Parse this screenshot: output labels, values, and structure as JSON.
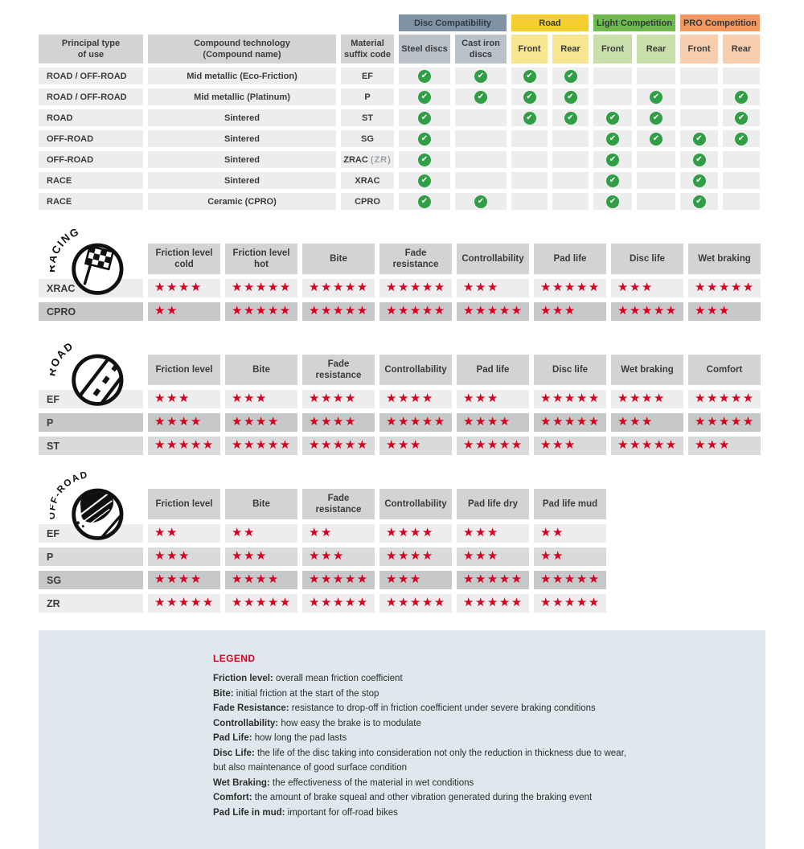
{
  "colors": {
    "star_red": "#d6001f",
    "check_green": "#2f9e44",
    "disc_compat_slate": "#8093a4",
    "disc_compat_slate_light": "#b9c1c9",
    "road_yellow": "#f5ce2f",
    "road_yellow_light": "#f8e590",
    "light_comp_green": "#70b94f",
    "light_comp_green_light": "#c8dfa9",
    "pro_comp_orange": "#f2975f",
    "pro_comp_orange_light": "#f8cfae",
    "header_gray": "#d2d4d4",
    "row_light": "#ededee",
    "row_medium": "#d9dadb",
    "row_dark": "#c7c8c9",
    "legend_bg": "#dee8ed"
  },
  "icons": {
    "star_glyph": "★",
    "check_glyph": "✔",
    "section_icons": [
      "racing-flag-icon",
      "road-icon",
      "offroad-mud-icon"
    ]
  },
  "chart_data": [
    {
      "type": "table",
      "title": "Compound compatibility matrix",
      "main_headers": [
        "Principal type\nof use",
        "Compound technology\n(Compound name)",
        "Material\nsuffix code"
      ],
      "group_headers": [
        {
          "label": "Disc Compatibility",
          "theme": "slate",
          "cols": [
            "Steel discs",
            "Cast iron discs"
          ]
        },
        {
          "label": "Road",
          "theme": "yellow",
          "cols": [
            "Front",
            "Rear"
          ]
        },
        {
          "label": "Light Competition",
          "theme": "green",
          "cols": [
            "Front",
            "Rear"
          ]
        },
        {
          "label": "PRO Competition",
          "theme": "orange",
          "cols": [
            "Front",
            "Rear"
          ]
        }
      ],
      "rows": [
        {
          "use": "ROAD / OFF-ROAD",
          "tech": "Mid metallic (Eco-Friction)",
          "code": "EF",
          "code_note": "",
          "checks": [
            1,
            1,
            1,
            1,
            0,
            0,
            0,
            0
          ]
        },
        {
          "use": "ROAD / OFF-ROAD",
          "tech": "Mid metallic (Platinum)",
          "code": "P",
          "code_note": "",
          "checks": [
            1,
            1,
            1,
            1,
            0,
            1,
            0,
            1
          ]
        },
        {
          "use": "ROAD",
          "tech": "Sintered",
          "code": "ST",
          "code_note": "",
          "checks": [
            1,
            0,
            1,
            1,
            1,
            1,
            0,
            1
          ]
        },
        {
          "use": "OFF-ROAD",
          "tech": "Sintered",
          "code": "SG",
          "code_note": "",
          "checks": [
            1,
            0,
            0,
            0,
            1,
            1,
            1,
            1
          ]
        },
        {
          "use": "OFF-ROAD",
          "tech": "Sintered",
          "code": "ZRAC",
          "code_note": "(ZR)",
          "checks": [
            1,
            0,
            0,
            0,
            1,
            0,
            1,
            0
          ]
        },
        {
          "use": "RACE",
          "tech": "Sintered",
          "code": "XRAC",
          "code_note": "",
          "checks": [
            1,
            0,
            0,
            0,
            1,
            0,
            1,
            0
          ]
        },
        {
          "use": "RACE",
          "tech": "Ceramic (CPRO)",
          "code": "CPRO",
          "code_note": "",
          "checks": [
            1,
            1,
            0,
            0,
            1,
            0,
            1,
            0
          ]
        }
      ]
    },
    {
      "type": "table",
      "section": "RACING",
      "icon": "racing-flag-icon",
      "rating_max": 5,
      "columns": [
        "Friction level cold",
        "Friction level hot",
        "Bite",
        "Fade resistance",
        "Controllability",
        "Pad life",
        "Disc life",
        "Wet braking"
      ],
      "rows": [
        {
          "code": "XRAC",
          "shade": "light",
          "stars": [
            4,
            5,
            5,
            5,
            3,
            5,
            3,
            5
          ]
        },
        {
          "code": "CPRO",
          "shade": "dark",
          "stars": [
            2,
            5,
            5,
            5,
            5,
            3,
            5,
            3
          ]
        }
      ]
    },
    {
      "type": "table",
      "section": "ROAD",
      "icon": "road-icon",
      "rating_max": 5,
      "columns": [
        "Friction level",
        "Bite",
        "Fade resistance",
        "Controllability",
        "Pad life",
        "Disc life",
        "Wet braking",
        "Comfort"
      ],
      "rows": [
        {
          "code": "EF",
          "shade": "light",
          "stars": [
            3,
            3,
            4,
            4,
            3,
            5,
            4,
            5
          ]
        },
        {
          "code": "P",
          "shade": "dark",
          "stars": [
            4,
            4,
            4,
            5,
            4,
            5,
            3,
            5
          ]
        },
        {
          "code": "ST",
          "shade": "medium",
          "stars": [
            5,
            5,
            5,
            3,
            5,
            3,
            5,
            3
          ]
        }
      ]
    },
    {
      "type": "table",
      "section": "OFF-ROAD",
      "icon": "offroad-mud-icon",
      "rating_max": 5,
      "columns": [
        "Friction level",
        "Bite",
        "Fade resistance",
        "Controllability",
        "Pad life dry",
        "Pad life mud"
      ],
      "rows": [
        {
          "code": "EF",
          "shade": "light",
          "stars": [
            2,
            2,
            2,
            4,
            3,
            2
          ]
        },
        {
          "code": "P",
          "shade": "medium",
          "stars": [
            3,
            3,
            3,
            4,
            3,
            2
          ]
        },
        {
          "code": "SG",
          "shade": "dark",
          "stars": [
            4,
            4,
            5,
            3,
            5,
            5
          ]
        },
        {
          "code": "ZR",
          "shade": "light",
          "stars": [
            5,
            5,
            5,
            5,
            5,
            5
          ]
        }
      ]
    }
  ],
  "legend": {
    "title": "LEGEND",
    "items": [
      {
        "term": "Friction level",
        "desc": "overall mean friction coefficient"
      },
      {
        "term": "Bite",
        "desc": "initial friction at the start of the stop"
      },
      {
        "term": "Fade Resistance",
        "desc": "resistance to drop-off in friction coefficient under severe braking conditions"
      },
      {
        "term": "Controllability",
        "desc": "how easy the brake is to modulate"
      },
      {
        "term": "Pad Life",
        "desc": "how long the pad lasts"
      },
      {
        "term": "Disc Life",
        "desc": "the life of the disc taking into consideration not only the reduction in thickness due to wear,"
      },
      {
        "term": "",
        "desc": "but also maintenance of good surface condition"
      },
      {
        "term": "Wet Braking",
        "desc": "the effectiveness of the material in wet conditions"
      },
      {
        "term": "Comfort",
        "desc": "the amount of brake squeal and other vibration generated during the braking event"
      },
      {
        "term": "Pad Life in mud",
        "desc": "important for off-road bikes"
      }
    ]
  }
}
